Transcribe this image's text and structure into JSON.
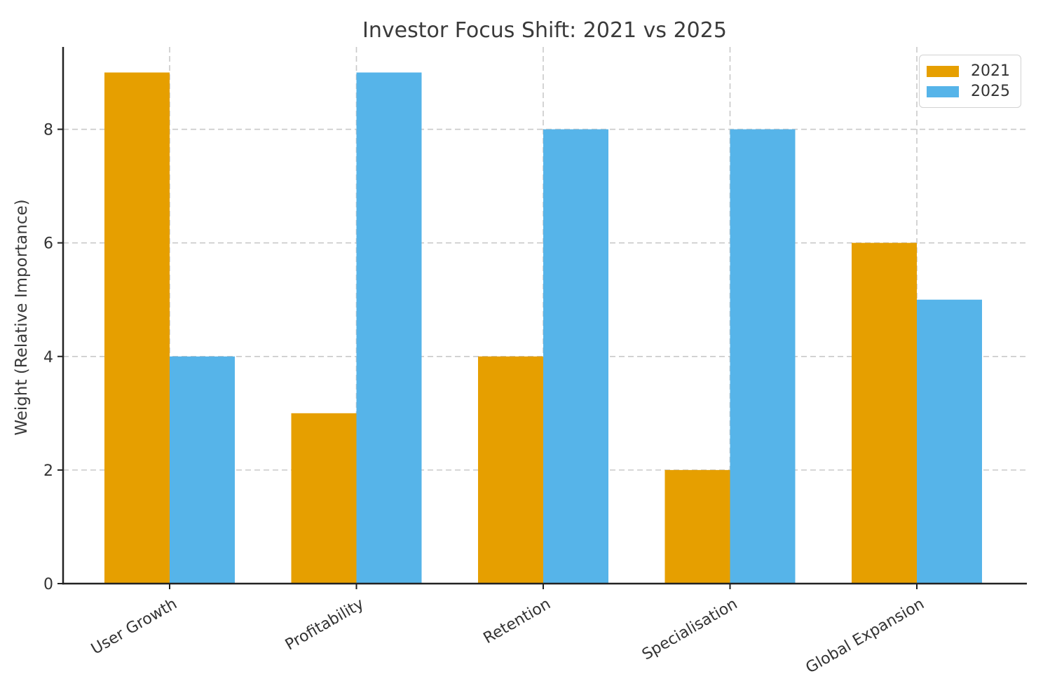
{
  "chart_data": {
    "type": "bar",
    "title": "Investor Focus Shift: 2021 vs 2025",
    "categories": [
      "User Growth",
      "Profitability",
      "Retention",
      "Specialisation",
      "Global Expansion"
    ],
    "series": [
      {
        "name": "2021",
        "color": "#E69F00",
        "values": [
          9,
          3,
          4,
          2,
          6
        ]
      },
      {
        "name": "2025",
        "color": "#56B4E9",
        "values": [
          4,
          9,
          8,
          8,
          5
        ]
      }
    ],
    "xlabel": "",
    "ylabel": "Weight (Relative Importance)",
    "yticks": [
      0,
      2,
      4,
      6,
      8
    ],
    "ylim": [
      0,
      9.45
    ],
    "grid": true,
    "grid_style": "dashed",
    "grid_color": "#c9c9c9",
    "spine_color": "#222222",
    "text_color": "#333333",
    "legend_position": "upper right",
    "xtick_rotation_deg": 30
  }
}
